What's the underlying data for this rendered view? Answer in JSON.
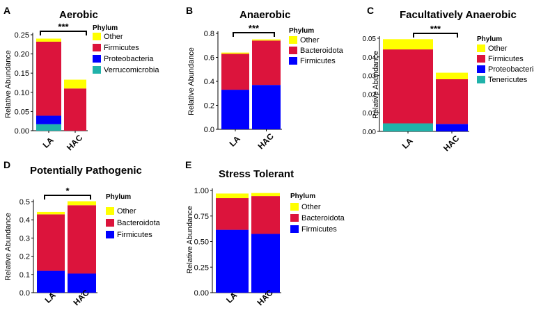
{
  "colors": {
    "Other": "#ffff00",
    "Firmicutes_red": "#dc143c",
    "Bacteroidota": "#dc143c",
    "Firmicutes_blue": "#0000ff",
    "Proteobacteria": "#0000ff",
    "Verrucomicrobia": "#20b2aa",
    "Tenericutes": "#20b2aa"
  },
  "chart_data": [
    {
      "type": "bar",
      "stacked": true,
      "panel_letter": "A",
      "title": "Aerobic",
      "ylabel": "Relative Abundance",
      "xlabel": "",
      "categories": [
        "LA",
        "HAC"
      ],
      "ylim": [
        0,
        0.25
      ],
      "yticks": [
        "0.00",
        "0.05",
        "0.10",
        "0.15",
        "0.20",
        "0.25"
      ],
      "significance": "***",
      "legend_title": "Phylum",
      "legend": [
        {
          "label": "Other",
          "color": "#ffff00"
        },
        {
          "label": "Firmicutes",
          "color": "#dc143c"
        },
        {
          "label": "Proteobacteria",
          "color": "#0000ff"
        },
        {
          "label": "Verrucomicrobia",
          "color": "#20b2aa"
        }
      ],
      "series": [
        {
          "name": "Verrucomicrobia",
          "color": "#20b2aa",
          "values": [
            0.017,
            0.0
          ]
        },
        {
          "name": "Proteobacteria",
          "color": "#0000ff",
          "values": [
            0.022,
            0.0
          ]
        },
        {
          "name": "Firmicutes",
          "color": "#dc143c",
          "values": [
            0.193,
            0.11
          ]
        },
        {
          "name": "Other",
          "color": "#ffff00",
          "values": [
            0.008,
            0.023
          ]
        }
      ]
    },
    {
      "type": "bar",
      "stacked": true,
      "panel_letter": "B",
      "title": "Anaerobic",
      "ylabel": "Relative Abundance",
      "xlabel": "",
      "categories": [
        "LA",
        "HAC"
      ],
      "ylim": [
        0,
        0.8
      ],
      "yticks": [
        "0.0",
        "0.2",
        "0.4",
        "0.6",
        "0.8"
      ],
      "significance": "***",
      "legend_title": "Phylum",
      "legend": [
        {
          "label": "Other",
          "color": "#ffff00"
        },
        {
          "label": "Bacteroidota",
          "color": "#dc143c"
        },
        {
          "label": "Firmicutes",
          "color": "#0000ff"
        }
      ],
      "series": [
        {
          "name": "Firmicutes",
          "color": "#0000ff",
          "values": [
            0.33,
            0.37
          ]
        },
        {
          "name": "Bacteroidota",
          "color": "#dc143c",
          "values": [
            0.3,
            0.37
          ]
        },
        {
          "name": "Other",
          "color": "#ffff00",
          "values": [
            0.01,
            0.01
          ]
        }
      ]
    },
    {
      "type": "bar",
      "stacked": true,
      "panel_letter": "C",
      "title": "Facultatively Anaerobic",
      "ylabel": "Relative Abundance",
      "xlabel": "",
      "categories": [
        "LA",
        "HAC"
      ],
      "ylim": [
        0,
        0.05
      ],
      "yticks": [
        "0.00",
        "0.01",
        "0.02",
        "0.03",
        "0.04",
        "0.05"
      ],
      "significance": "***",
      "legend_title": "Phylum",
      "legend": [
        {
          "label": "Other",
          "color": "#ffff00"
        },
        {
          "label": "Firmicutes",
          "color": "#dc143c"
        },
        {
          "label": "Proteobacteria",
          "color": "#0000ff"
        },
        {
          "label": "Tenericutes",
          "color": "#20b2aa"
        }
      ],
      "series": [
        {
          "name": "Tenericutes",
          "color": "#20b2aa",
          "values": [
            0.0043,
            0.0
          ]
        },
        {
          "name": "Proteobacteria",
          "color": "#0000ff",
          "values": [
            0.0,
            0.004
          ]
        },
        {
          "name": "Firmicutes",
          "color": "#dc143c",
          "values": [
            0.0397,
            0.024
          ]
        },
        {
          "name": "Other",
          "color": "#ffff00",
          "values": [
            0.0055,
            0.0035
          ]
        }
      ]
    },
    {
      "type": "bar",
      "stacked": true,
      "panel_letter": "D",
      "title": "Potentially Pathogenic",
      "ylabel": "Relative Abundance",
      "xlabel": "",
      "categories": [
        "LA",
        "HAC"
      ],
      "ylim": [
        0,
        0.5
      ],
      "yticks": [
        "0.0",
        "0.1",
        "0.2",
        "0.3",
        "0.4",
        "0.5"
      ],
      "significance": "*",
      "legend_title": "Phylum",
      "legend": [
        {
          "label": "Other",
          "color": "#ffff00"
        },
        {
          "label": "Bacteroidota",
          "color": "#dc143c"
        },
        {
          "label": "Firmicutes",
          "color": "#0000ff"
        }
      ],
      "series": [
        {
          "name": "Firmicutes",
          "color": "#0000ff",
          "values": [
            0.12,
            0.105
          ]
        },
        {
          "name": "Bacteroidota",
          "color": "#dc143c",
          "values": [
            0.31,
            0.375
          ]
        },
        {
          "name": "Other",
          "color": "#ffff00",
          "values": [
            0.013,
            0.022
          ]
        }
      ]
    },
    {
      "type": "bar",
      "stacked": true,
      "panel_letter": "E",
      "title": "Stress Tolerant",
      "ylabel": "Relative Abundance",
      "xlabel": "",
      "categories": [
        "LA",
        "HAC"
      ],
      "ylim": [
        0,
        1.0
      ],
      "yticks": [
        "0.00",
        "0.25",
        "0.50",
        "0.75",
        "1.00"
      ],
      "significance": "",
      "legend_title": "Phylum",
      "legend": [
        {
          "label": "Other",
          "color": "#ffff00"
        },
        {
          "label": "Bacteroidota",
          "color": "#dc143c"
        },
        {
          "label": "Firmicutes",
          "color": "#0000ff"
        }
      ],
      "series": [
        {
          "name": "Firmicutes",
          "color": "#0000ff",
          "values": [
            0.615,
            0.575
          ]
        },
        {
          "name": "Bacteroidota",
          "color": "#dc143c",
          "values": [
            0.31,
            0.37
          ]
        },
        {
          "name": "Other",
          "color": "#ffff00",
          "values": [
            0.045,
            0.03
          ]
        }
      ]
    }
  ]
}
